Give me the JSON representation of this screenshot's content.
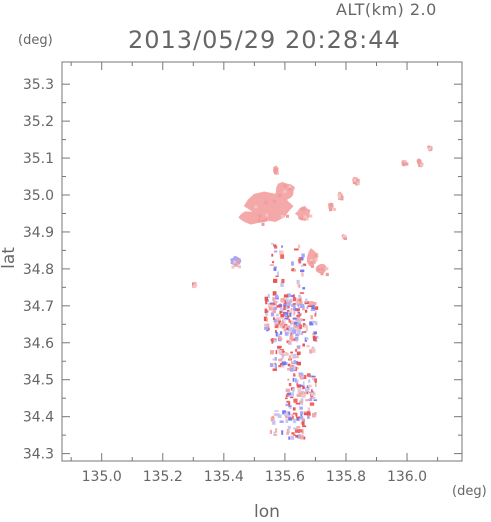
{
  "header": {
    "alt_label": "ALT(km) 2.0",
    "datetime": "2013/05/29 20:28:44",
    "y_unit": "(deg)",
    "x_unit": "(deg)"
  },
  "chart_data": {
    "type": "heatmap",
    "title": "2013/05/29 20:28:44",
    "subtitle": "ALT(km) 2.0",
    "xlabel": "lon",
    "ylabel": "lat",
    "xlim": [
      134.87,
      136.18
    ],
    "ylim": [
      34.28,
      35.36
    ],
    "xticks": [
      135.0,
      135.2,
      135.4,
      135.6,
      135.8,
      136.0
    ],
    "xtick_labels": [
      "135.0",
      "135.2",
      "135.4",
      "135.6",
      "135.8",
      "136.0"
    ],
    "yticks": [
      34.3,
      34.4,
      34.5,
      34.6,
      34.7,
      34.8,
      34.9,
      35.0,
      35.1,
      35.2,
      35.3
    ],
    "ytick_labels": [
      "34.3",
      "34.4",
      "34.5",
      "34.6",
      "34.7",
      "34.8",
      "34.9",
      "35.0",
      "35.1",
      "35.2",
      "35.3"
    ],
    "grid": false,
    "colors": {
      "positive": "#f4a8a8",
      "strong_positive": "#ee6666",
      "negative": "#a8a8f4",
      "strong_negative": "#7777ee",
      "axis": "#777777"
    },
    "regions": [
      {
        "lon": 135.55,
        "lat": 34.97,
        "w": 0.16,
        "h": 0.08,
        "value": "pos"
      },
      {
        "lon": 135.6,
        "lat": 35.01,
        "w": 0.07,
        "h": 0.05,
        "value": "pos"
      },
      {
        "lon": 135.5,
        "lat": 34.94,
        "w": 0.1,
        "h": 0.04,
        "value": "pos"
      },
      {
        "lon": 135.66,
        "lat": 34.95,
        "w": 0.05,
        "h": 0.04,
        "value": "pos"
      },
      {
        "lon": 135.57,
        "lat": 35.07,
        "w": 0.02,
        "h": 0.02,
        "value": "pos"
      },
      {
        "lon": 135.69,
        "lat": 34.83,
        "w": 0.04,
        "h": 0.05,
        "value": "pos"
      },
      {
        "lon": 135.72,
        "lat": 34.8,
        "w": 0.04,
        "h": 0.03,
        "value": "pos"
      },
      {
        "lon": 135.83,
        "lat": 35.04,
        "w": 0.02,
        "h": 0.02,
        "value": "pos"
      },
      {
        "lon": 135.78,
        "lat": 35.0,
        "w": 0.02,
        "h": 0.02,
        "value": "pos"
      },
      {
        "lon": 135.75,
        "lat": 34.97,
        "w": 0.02,
        "h": 0.02,
        "value": "pos"
      },
      {
        "lon": 135.99,
        "lat": 35.09,
        "w": 0.02,
        "h": 0.01,
        "value": "pos"
      },
      {
        "lon": 136.04,
        "lat": 35.09,
        "w": 0.02,
        "h": 0.02,
        "value": "pos"
      },
      {
        "lon": 136.07,
        "lat": 35.13,
        "w": 0.01,
        "h": 0.01,
        "value": "pos"
      },
      {
        "lon": 135.79,
        "lat": 34.89,
        "w": 0.01,
        "h": 0.01,
        "value": "pos"
      },
      {
        "lon": 135.44,
        "lat": 34.82,
        "w": 0.04,
        "h": 0.03,
        "value": "neg"
      },
      {
        "lon": 135.3,
        "lat": 34.76,
        "w": 0.01,
        "h": 0.01,
        "value": "spos"
      }
    ],
    "speckle_areas": [
      {
        "lon": [
          135.53,
          135.65
        ],
        "lat": [
          34.64,
          34.74
        ],
        "count": 140
      },
      {
        "lon": [
          135.55,
          135.64
        ],
        "lat": [
          34.53,
          34.64
        ],
        "count": 90
      },
      {
        "lon": [
          135.6,
          135.7
        ],
        "lat": [
          34.4,
          34.52
        ],
        "count": 100
      },
      {
        "lon": [
          135.55,
          135.66
        ],
        "lat": [
          34.34,
          34.42
        ],
        "count": 45
      },
      {
        "lon": [
          135.63,
          135.7
        ],
        "lat": [
          34.58,
          34.72
        ],
        "count": 55
      },
      {
        "lon": [
          135.55,
          135.59
        ],
        "lat": [
          34.76,
          34.88
        ],
        "count": 18
      },
      {
        "lon": [
          135.62,
          135.66
        ],
        "lat": [
          34.75,
          34.87
        ],
        "count": 20
      }
    ]
  }
}
